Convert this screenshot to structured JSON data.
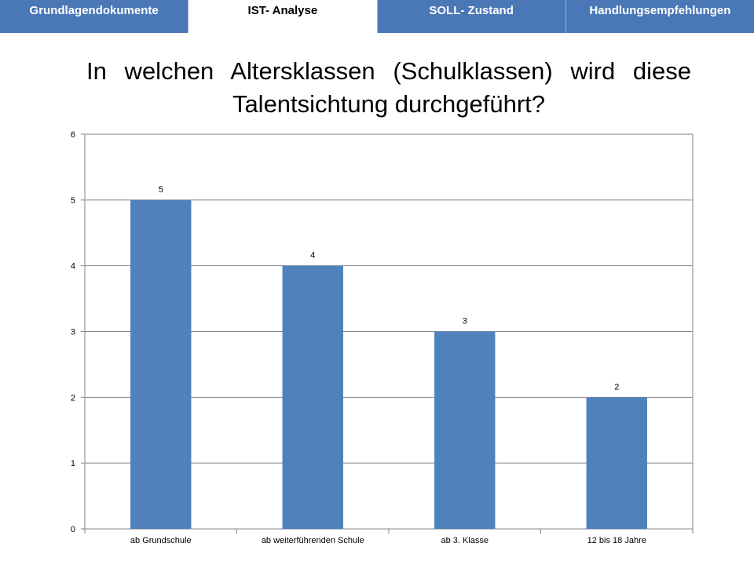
{
  "tabs": [
    {
      "label": "Grundlagendokumente",
      "active": false
    },
    {
      "label": "IST- Analyse",
      "active": true
    },
    {
      "label": "SOLL- Zustand",
      "active": false
    },
    {
      "label": "Handlungsempfehlungen",
      "active": false
    }
  ],
  "title": "In welchen Altersklassen (Schulklassen) wird diese Talentsichtung durchgeführt?",
  "chart_data": {
    "type": "bar",
    "categories": [
      "ab Grundschule",
      "ab weiterführenden Schule",
      "ab 3. Klasse",
      "12 bis 18 Jahre"
    ],
    "values": [
      5,
      4,
      3,
      2
    ],
    "data_labels": [
      "5",
      "4",
      "3",
      "2"
    ],
    "ylim": [
      0,
      6
    ],
    "yticks": [
      "0",
      "1",
      "2",
      "3",
      "4",
      "5",
      "6"
    ],
    "grid": true,
    "legend": "none",
    "bar_color": "#4f81bd",
    "grid_color": "#868686"
  }
}
